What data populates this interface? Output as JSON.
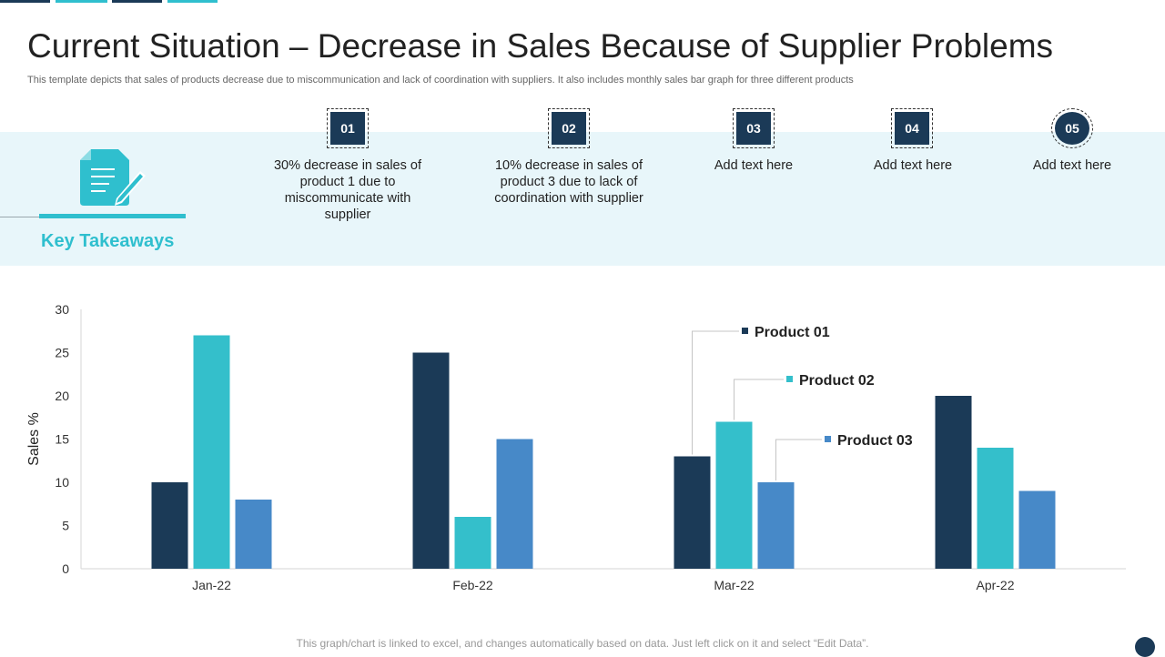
{
  "header": {
    "title": "Current Situation – Decrease in Sales Because of Supplier Problems",
    "subtitle": "This template depicts that sales of products decrease due to miscommunication and lack of coordination with suppliers. It also includes monthly sales bar graph for three different products"
  },
  "takeaways": {
    "label": "Key Takeaways",
    "steps": [
      {
        "number": "01",
        "text": "30% decrease in sales of product 1 due to miscommunicate with supplier"
      },
      {
        "number": "02",
        "text": "10% decrease in sales of product 3 due to lack of coordination with supplier"
      },
      {
        "number": "03",
        "text": "Add text here"
      },
      {
        "number": "04",
        "text": "Add text here"
      },
      {
        "number": "05",
        "text": "Add text here"
      }
    ]
  },
  "footer": {
    "note": "This graph/chart is linked to excel, and changes automatically based on data. Just left click on it and select “Edit Data”."
  },
  "colors": {
    "navy": "#1b3a57",
    "teal": "#34bfcb",
    "blue": "#4789c8",
    "band_bg": "#e8f6fa",
    "accent": "#2fbfce",
    "axis": "#d6d6d6"
  },
  "icons": {
    "document": "document-pen-icon"
  },
  "chart_data": {
    "type": "bar",
    "title": "",
    "xlabel": "",
    "ylabel": "Sales %",
    "ylim": [
      0,
      30
    ],
    "yticks": [
      0,
      5,
      10,
      15,
      20,
      25,
      30
    ],
    "categories": [
      "Jan-22",
      "Feb-22",
      "Mar-22",
      "Apr-22"
    ],
    "series": [
      {
        "name": "Product 01",
        "color": "#1b3a57",
        "values": [
          10,
          25,
          13,
          20
        ]
      },
      {
        "name": "Product 02",
        "color": "#34bfcb",
        "values": [
          27,
          6,
          17,
          14
        ]
      },
      {
        "name": "Product 03",
        "color": "#4789c8",
        "values": [
          8,
          15,
          10,
          9
        ]
      }
    ],
    "legend": "callouts on Mar-22 bars",
    "grid": false
  }
}
